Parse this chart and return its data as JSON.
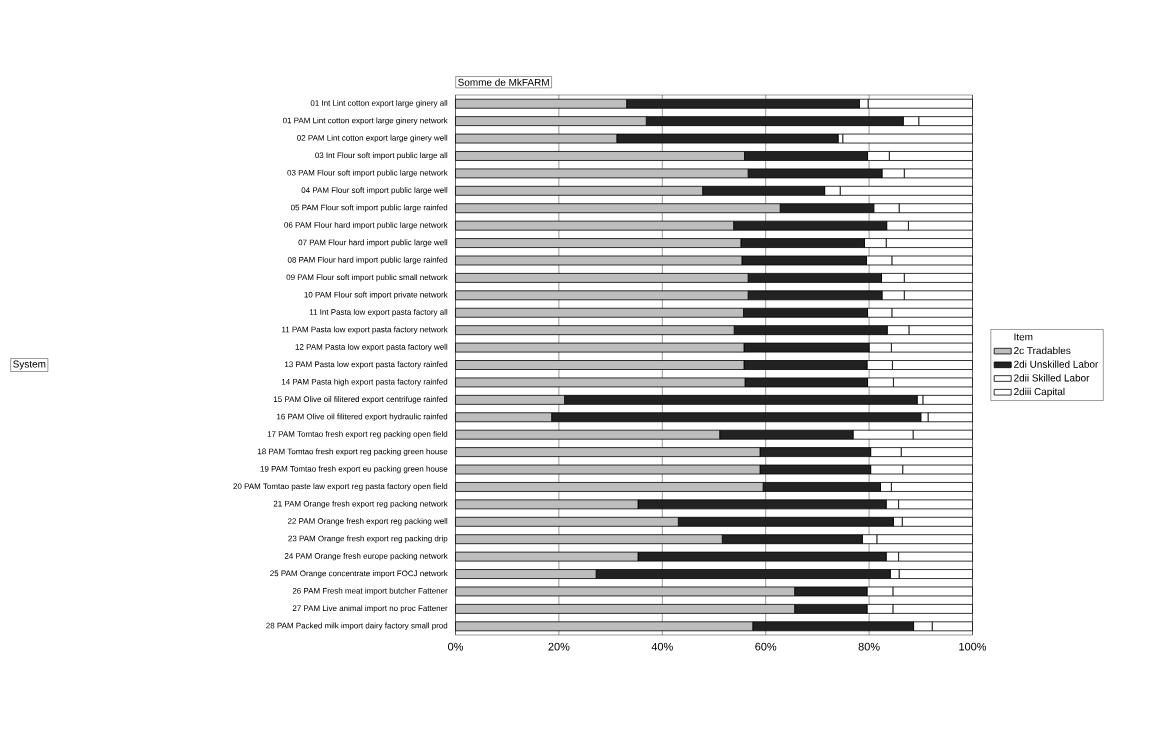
{
  "chart_data": {
    "type": "bar",
    "orientation": "horizontal",
    "stacked": true,
    "title": "Somme de MkFARM",
    "annotations": [
      "System"
    ],
    "legend_title": "Item",
    "legend": "right",
    "grid": "x",
    "categories": [
      "01 Int Lint cotton export large ginery all",
      "01 PAM Lint cotton export large ginery network",
      "02 PAM Lint cotton export large ginery well",
      "03 Int Flour soft import public large all",
      "03 PAM Flour soft import public large network",
      "04 PAM Flour soft import public large well",
      "05 PAM Flour soft import public large rainfed",
      "06 PAM Flour hard import public large network",
      "07 PAM Flour hard import public large well",
      "08 PAM Flour hard import public large rainfed",
      "09 PAM Flour soft import public small network",
      "10 PAM Flour soft import private network",
      "11 Int Pasta low export pasta factory all",
      "11 PAM Pasta low export pasta factory network",
      "12 PAM Pasta low export pasta factory well",
      "13 PAM Pasta low export pasta factory rainfed",
      "14 PAM Pasta high export pasta factory rainfed",
      "15 PAM Olive oil filitered export centrifuge rainfed",
      "16 PAM Olive oil filitered export hydraulic rainfed",
      "17 PAM Tomtao fresh export reg packing open field",
      "18 PAM Tomtao fresh export reg packing green house",
      "19 PAM Tomtao fresh export eu packing green house",
      "20 PAM Tomtao paste law export reg pasta factory open field",
      "21 PAM Orange fresh export reg packing network",
      "22 PAM Orange fresh export reg packing well",
      "23 PAM Orange fresh export reg packing drip",
      "24 PAM Orange fresh europe packing network",
      "25 PAM Orange concentrate import FOCJ network",
      "26 PAM Fresh meat import butcher Fattener",
      "27 PAM Live animal import no proc Fattener",
      "28 PAM Packed milk import dairy factory small prod"
    ],
    "series": [
      {
        "name": "2c Tradables",
        "color": "#bdbdbd",
        "values": [
          33.1,
          36.9,
          31.2,
          55.9,
          56.6,
          47.8,
          62.8,
          53.8,
          55.2,
          55.4,
          56.6,
          56.6,
          55.7,
          53.9,
          55.8,
          55.8,
          56.0,
          21.1,
          18.6,
          51.1,
          58.9,
          58.9,
          59.5,
          35.3,
          43.1,
          51.6,
          35.3,
          27.2,
          65.6,
          65.6,
          57.5
        ]
      },
      {
        "name": "2di Unskilled Labor",
        "color": "#222222",
        "values": [
          45.0,
          49.7,
          42.8,
          23.8,
          25.9,
          23.6,
          18.1,
          29.6,
          23.9,
          24.1,
          25.8,
          25.9,
          24.0,
          29.6,
          24.2,
          23.8,
          23.7,
          68.2,
          71.4,
          25.8,
          21.4,
          21.4,
          22.7,
          48.0,
          41.6,
          27.1,
          48.0,
          56.9,
          14.0,
          14.0,
          31.1
        ]
      },
      {
        "name": "2dii Skilled Labor",
        "color": "#ffffff",
        "values": [
          1.7,
          3.0,
          0.9,
          4.2,
          4.3,
          3.0,
          4.9,
          4.2,
          4.2,
          4.9,
          4.4,
          4.3,
          4.7,
          4.2,
          4.3,
          4.9,
          5.0,
          1.1,
          1.4,
          11.6,
          5.9,
          6.2,
          2.1,
          2.4,
          1.7,
          2.8,
          2.4,
          1.7,
          5.0,
          5.0,
          3.6
        ]
      },
      {
        "name": "2diii Capital",
        "color": "#ffffff",
        "values": [
          20.2,
          10.4,
          25.1,
          16.1,
          13.2,
          25.6,
          14.2,
          12.4,
          16.7,
          15.6,
          13.2,
          13.2,
          15.6,
          12.3,
          15.7,
          15.5,
          15.3,
          9.6,
          8.6,
          11.5,
          13.8,
          13.5,
          15.7,
          14.3,
          13.6,
          18.5,
          14.3,
          14.2,
          15.4,
          15.4,
          7.8
        ]
      }
    ],
    "xlim": [
      0,
      100
    ],
    "xticks": [
      {
        "value": 0,
        "label": "0%"
      },
      {
        "value": 20,
        "label": "20%"
      },
      {
        "value": 40,
        "label": "40%"
      },
      {
        "value": 60,
        "label": "60%"
      },
      {
        "value": 80,
        "label": "80%"
      },
      {
        "value": 100,
        "label": "100%"
      }
    ]
  }
}
